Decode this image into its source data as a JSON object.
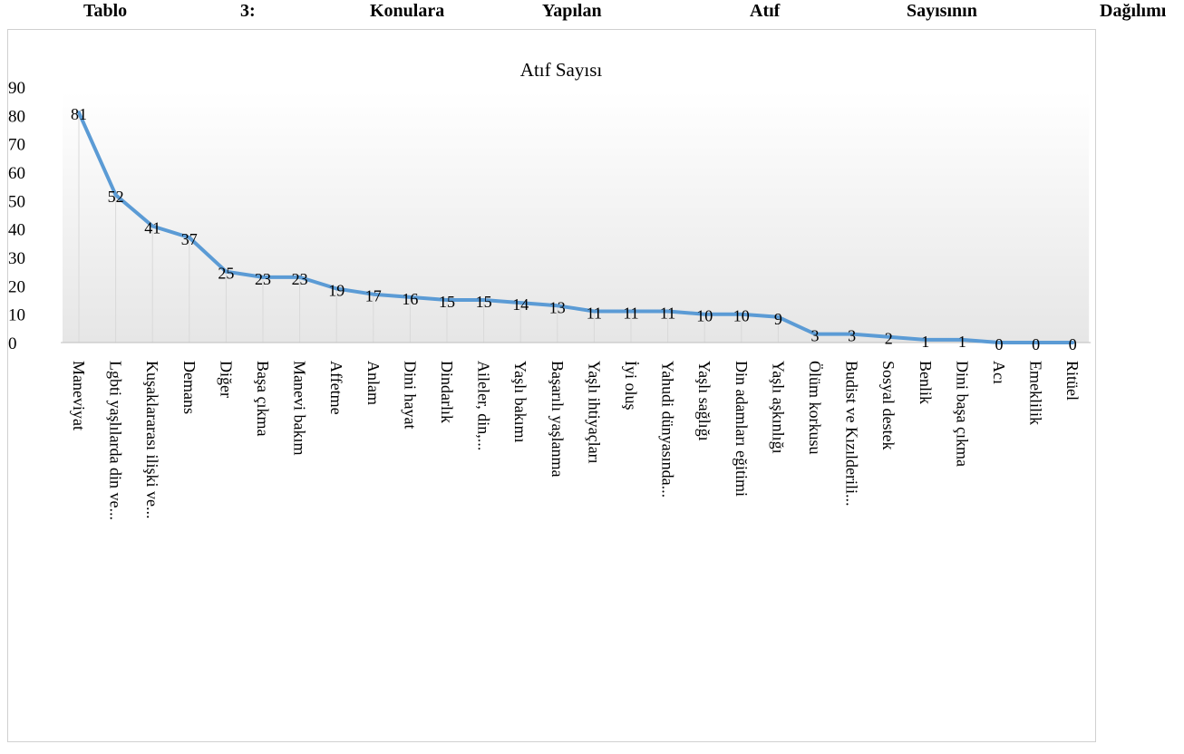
{
  "caption": {
    "words": [
      "Tablo",
      "3:",
      "Konulara",
      "Yapılan",
      "Atıf",
      "Sayısının",
      "Dağılımı"
    ]
  },
  "colors": {
    "line": "#5b9bd5",
    "drop_line": "#d9d9d9",
    "gradient_top": "#ffffff",
    "gradient_bottom": "#e6e6e6",
    "frame_border": "#d0d0d0"
  },
  "chart_data": {
    "type": "line",
    "title": "Atıf Sayısı",
    "xlabel": "",
    "ylabel": "",
    "ylim": [
      0,
      90
    ],
    "yticks": [
      0,
      10,
      20,
      30,
      40,
      50,
      60,
      70,
      80,
      90
    ],
    "grid": false,
    "drop_lines": true,
    "categories": [
      "Maneviyat",
      "Lgbti yaşlılarda din ve...",
      "Kuşaklararası ilişki ve...",
      "Demans",
      "Diğer",
      "Başa çıkma",
      "Manevi bakım",
      "Affetme",
      "Anlam",
      "Dini hayat",
      "Dindarlık",
      "Aileler, din,...",
      "Yaşlı bakımı",
      "Başarılı yaşlanma",
      "Yaşlı ihtiyaçları",
      "İyi oluş",
      "Yahudi dünyasında...",
      "Yaşlı sağlığı",
      "Din adamları eğitimi",
      "Yaşlı aşkınlığı",
      "Ölüm korkusu",
      "Budist ve Kızılderili...",
      "Sosyal destek",
      "Benlik",
      "Dini başa çıkma",
      "Acı",
      "Emeklilik",
      "Ritüel"
    ],
    "values": [
      81,
      52,
      41,
      37,
      25,
      23,
      23,
      19,
      17,
      16,
      15,
      15,
      14,
      13,
      11,
      11,
      11,
      10,
      10,
      9,
      3,
      3,
      2,
      1,
      1,
      0,
      0,
      0
    ]
  }
}
